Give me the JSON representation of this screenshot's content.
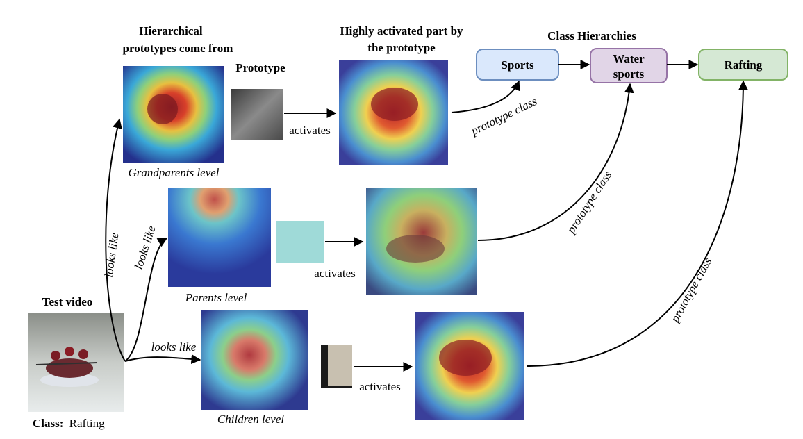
{
  "headings": {
    "hierarchical_line1": "Hierarchical",
    "hierarchical_line2": "prototypes come from",
    "prototype": "Prototype",
    "highly_line1": "Highly activated part by",
    "highly_line2": "the prototype",
    "class_hierarchies": "Class Hierarchies",
    "test_video": "Test video"
  },
  "class_label": {
    "prefix": "Class:",
    "value": "Rafting"
  },
  "levels": {
    "grandparents": "Grandparents level",
    "parents": "Parents level",
    "children": "Children level"
  },
  "edge_labels": {
    "activates": "activates",
    "looks_like": "looks like",
    "prototype_class": "prototype class"
  },
  "classes": [
    {
      "line1": "Sports",
      "line2": "",
      "fill": "#dae8fc",
      "stroke": "#6c8ebf"
    },
    {
      "line1": "Water",
      "line2": "sports",
      "fill": "#e1d5e7",
      "stroke": "#9673a6"
    },
    {
      "line1": "Rafting",
      "line2": "",
      "fill": "#d5e8d4",
      "stroke": "#82b366"
    }
  ],
  "images": {
    "test_video": "rafting photo",
    "grandparents_heatmap": "heatmap",
    "parents_heatmap": "heatmap",
    "children_heatmap": "heatmap",
    "prototype_patch": "grey patch",
    "parents_patch": "cyan patch",
    "children_patch": "small patch",
    "activated_heatmaps": "heatmap"
  }
}
